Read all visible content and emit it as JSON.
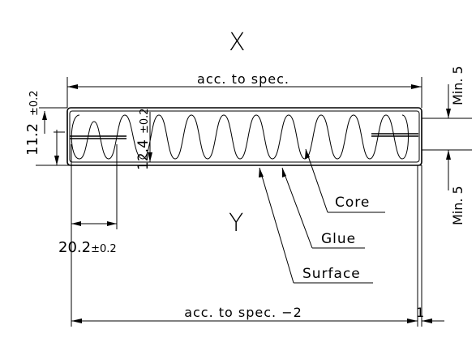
{
  "labels": {
    "side_top": "X",
    "side_bottom": "Y",
    "overall_width": "acc. to spec.",
    "overall_width_reduced": "acc. to spec. −2",
    "reduction": "1",
    "thickness_main": "11.2",
    "thickness_main_tol": "±0.2",
    "core_height": "12.4",
    "core_height_tol": "±0.2",
    "spacing": "20.2",
    "spacing_tol": "±0.2",
    "min_top": "Min. 5",
    "min_bottom": "Min. 5",
    "core": "Core",
    "glue": "Glue",
    "surface": "Surface"
  }
}
